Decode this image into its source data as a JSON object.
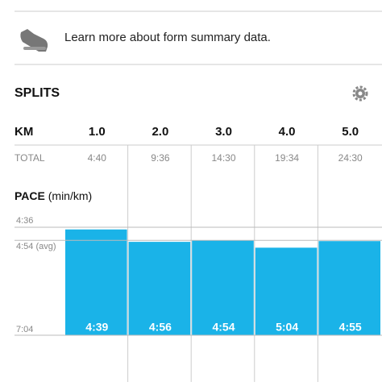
{
  "form_link": "Learn more about form summary data.",
  "splits": {
    "title": "SPLITS",
    "table": {
      "header_label": "KM",
      "columns": [
        "1.0",
        "2.0",
        "3.0",
        "4.0",
        "5.0"
      ],
      "total_label": "TOTAL",
      "totals": [
        "4:40",
        "9:36",
        "14:30",
        "19:34",
        "24:30"
      ]
    }
  },
  "chart_data": {
    "type": "bar",
    "title": "PACE",
    "unit": "(min/km)",
    "color": "#1ab3e8",
    "values": [
      279,
      296,
      294,
      304,
      295
    ],
    "value_labels": [
      "4:39",
      "4:56",
      "4:54",
      "5:04",
      "4:55"
    ],
    "ylim": [
      276,
      424
    ],
    "yticks": [
      {
        "value": 276,
        "label": "4:36"
      },
      {
        "value": 294,
        "label": "4:54 (avg)"
      },
      {
        "value": 424,
        "label": "7:04"
      }
    ]
  }
}
